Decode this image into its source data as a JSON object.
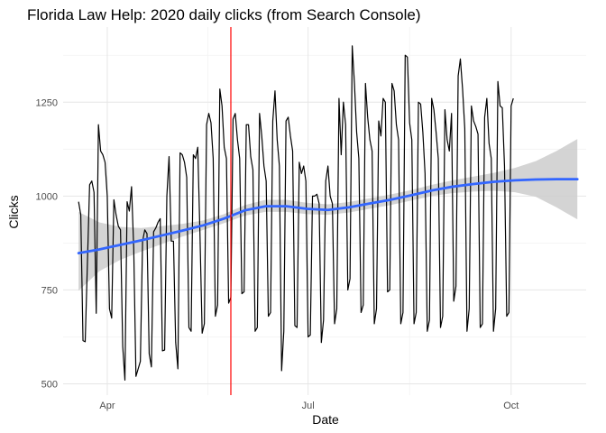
{
  "chart_data": {
    "type": "line",
    "title": "Florida Law Help: 2020 daily clicks (from Search Console)",
    "xlabel": "Date",
    "ylabel": "Clicks",
    "x_ticks": [
      "Apr",
      "Jul",
      "Oct"
    ],
    "x_tick_dates": [
      "2020-04-01",
      "2020-07-01",
      "2020-10-01"
    ],
    "y_ticks": [
      500,
      750,
      1000,
      1250
    ],
    "xlim": [
      "2020-03-12",
      "2020-11-04"
    ],
    "ylim": [
      470,
      1450
    ],
    "grid": true,
    "vline": {
      "x": "2020-05-27",
      "color": "#ff0000"
    },
    "series": [
      {
        "kind": "daily",
        "color": "#000000",
        "start_date": "2020-03-19",
        "values": [
          985,
          950,
          615,
          612,
          820,
          1030,
          1040,
          1010,
          688,
          1190,
          1120,
          1110,
          1090,
          1000,
          700,
          675,
          990,
          950,
          920,
          910,
          600,
          510,
          985,
          960,
          1025,
          860,
          520,
          540,
          560,
          880,
          910,
          900,
          580,
          545,
          905,
          915,
          930,
          940,
          588,
          590,
          1000,
          1105,
          880,
          880,
          610,
          540,
          1115,
          1110,
          1090,
          1050,
          650,
          640,
          1110,
          1100,
          1130,
          900,
          635,
          660,
          1190,
          1220,
          1195,
          1100,
          680,
          710,
          1285,
          1240,
          1130,
          1100,
          715,
          730,
          1205,
          1220,
          1150,
          1100,
          740,
          745,
          1190,
          1190,
          1105,
          1070,
          640,
          650,
          1220,
          1160,
          1080,
          1040,
          680,
          690,
          1200,
          1280,
          1150,
          1080,
          535,
          640,
          1200,
          1210,
          1160,
          1120,
          655,
          650,
          1090,
          1060,
          1080,
          1040,
          625,
          630,
          1000,
          1000,
          1005,
          980,
          610,
          670,
          1040,
          1080,
          1000,
          980,
          660,
          700,
          1260,
          1110,
          1250,
          1190,
          750,
          780,
          1400,
          1300,
          1170,
          1100,
          690,
          710,
          1300,
          1210,
          1150,
          1120,
          660,
          700,
          1200,
          1160,
          1260,
          1250,
          745,
          750,
          1300,
          1280,
          1190,
          1150,
          660,
          690,
          1375,
          1370,
          1195,
          1150,
          660,
          690,
          1250,
          1245,
          1170,
          1060,
          640,
          670,
          1260,
          1230,
          1170,
          1100,
          650,
          680,
          1230,
          1150,
          1120,
          1220,
          720,
          760,
          1320,
          1365,
          1285,
          1180,
          640,
          700,
          1240,
          1200,
          1185,
          1165,
          650,
          660,
          1210,
          1260,
          1140,
          1100,
          640,
          700,
          1305,
          1240,
          1235,
          1080,
          680,
          690,
          1240,
          1260
        ]
      },
      {
        "kind": "smooth",
        "color": "#3366ff",
        "start_date": "2020-03-19",
        "end_date": "2020-10-31",
        "values": [
          848,
          858,
          870,
          882,
          895,
          908,
          922,
          940,
          962,
          973,
          973,
          966,
          963,
          970,
          980,
          990,
          1002,
          1015,
          1025,
          1032,
          1038,
          1042,
          1044,
          1045,
          1045
        ],
        "ci_lower": [
          748,
          800,
          830,
          852,
          872,
          892,
          910,
          928,
          948,
          958,
          958,
          952,
          950,
          956,
          966,
          976,
          988,
          1000,
          1008,
          1012,
          1014,
          1010,
          998,
          970,
          938
        ],
        "ci_upper": [
          958,
          930,
          918,
          915,
          920,
          926,
          935,
          952,
          976,
          990,
          990,
          982,
          978,
          984,
          994,
          1004,
          1016,
          1030,
          1042,
          1052,
          1062,
          1075,
          1093,
          1120,
          1152
        ]
      }
    ]
  }
}
